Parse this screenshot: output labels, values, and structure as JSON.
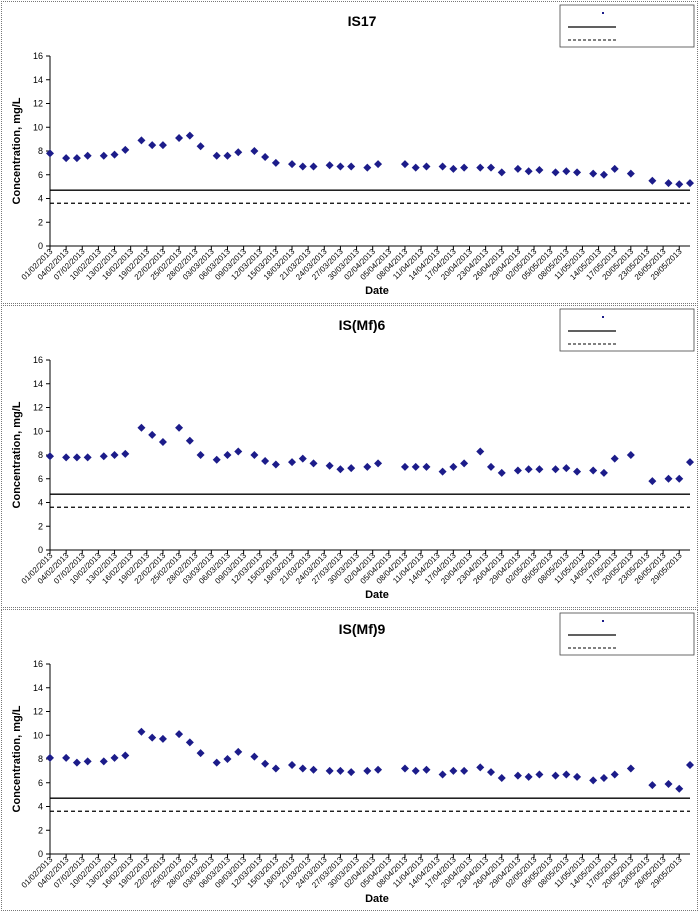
{
  "chart_data": [
    {
      "type": "scatter",
      "title": "IS17",
      "xlabel": "Date",
      "ylabel": "Concentration, mg/L",
      "ylim": [
        0,
        16
      ],
      "yticks": [
        0,
        2,
        4,
        6,
        8,
        10,
        12,
        14,
        16
      ],
      "xlim": [
        "01/02/2013",
        "31/05/2013"
      ],
      "xticks": [
        "01/02/2013",
        "04/02/2013",
        "07/02/2013",
        "10/02/2013",
        "13/02/2013",
        "16/02/2013",
        "19/02/2013",
        "22/02/2013",
        "25/02/2013",
        "28/02/2013",
        "03/03/2013",
        "06/03/2013",
        "09/03/2013",
        "12/03/2013",
        "15/03/2013",
        "18/03/2013",
        "21/03/2013",
        "24/03/2013",
        "27/03/2013",
        "30/03/2013",
        "02/04/2013",
        "05/04/2013",
        "08/04/2013",
        "11/04/2013",
        "14/04/2013",
        "17/04/2013",
        "20/04/2013",
        "23/04/2013",
        "26/04/2013",
        "29/04/2013",
        "02/05/2013",
        "05/05/2013",
        "08/05/2013",
        "11/05/2013",
        "14/05/2013",
        "17/05/2013",
        "20/05/2013",
        "23/05/2013",
        "26/05/2013",
        "29/05/2013"
      ],
      "grid": false,
      "legend_position": "top-right",
      "legend": [
        "",
        "",
        ""
      ],
      "points": [
        [
          "01/02/2013",
          7.8
        ],
        [
          "04/02/2013",
          7.4
        ],
        [
          "06/02/2013",
          7.4
        ],
        [
          "08/02/2013",
          7.6
        ],
        [
          "11/02/2013",
          7.6
        ],
        [
          "13/02/2013",
          7.7
        ],
        [
          "15/02/2013",
          8.1
        ],
        [
          "18/02/2013",
          8.9
        ],
        [
          "20/02/2013",
          8.5
        ],
        [
          "22/02/2013",
          8.5
        ],
        [
          "25/02/2013",
          9.1
        ],
        [
          "27/02/2013",
          9.3
        ],
        [
          "01/03/2013",
          8.4
        ],
        [
          "04/03/2013",
          7.6
        ],
        [
          "06/03/2013",
          7.6
        ],
        [
          "08/03/2013",
          7.9
        ],
        [
          "11/03/2013",
          8.0
        ],
        [
          "13/03/2013",
          7.5
        ],
        [
          "15/03/2013",
          7.0
        ],
        [
          "18/03/2013",
          6.9
        ],
        [
          "20/03/2013",
          6.7
        ],
        [
          "22/03/2013",
          6.7
        ],
        [
          "25/03/2013",
          6.8
        ],
        [
          "27/03/2013",
          6.7
        ],
        [
          "29/03/2013",
          6.7
        ],
        [
          "01/04/2013",
          6.6
        ],
        [
          "03/04/2013",
          6.9
        ],
        [
          "08/04/2013",
          6.9
        ],
        [
          "10/04/2013",
          6.6
        ],
        [
          "12/04/2013",
          6.7
        ],
        [
          "15/04/2013",
          6.7
        ],
        [
          "17/04/2013",
          6.5
        ],
        [
          "19/04/2013",
          6.6
        ],
        [
          "22/04/2013",
          6.6
        ],
        [
          "24/04/2013",
          6.6
        ],
        [
          "26/04/2013",
          6.2
        ],
        [
          "29/04/2013",
          6.5
        ],
        [
          "01/05/2013",
          6.3
        ],
        [
          "03/05/2013",
          6.4
        ],
        [
          "06/05/2013",
          6.2
        ],
        [
          "08/05/2013",
          6.3
        ],
        [
          "10/05/2013",
          6.2
        ],
        [
          "13/05/2013",
          6.1
        ],
        [
          "15/05/2013",
          6.0
        ],
        [
          "17/05/2013",
          6.5
        ],
        [
          "20/05/2013",
          6.1
        ],
        [
          "24/05/2013",
          5.5
        ],
        [
          "27/05/2013",
          5.3
        ],
        [
          "29/05/2013",
          5.2
        ],
        [
          "31/05/2013",
          5.3
        ]
      ],
      "hlines": [
        {
          "value": 4.7,
          "style": "solid"
        },
        {
          "value": 3.6,
          "style": "dashed"
        }
      ]
    },
    {
      "type": "scatter",
      "title": "IS(Mf)6",
      "xlabel": "Date",
      "ylabel": "Concentration, mg/L",
      "ylim": [
        0,
        16
      ],
      "yticks": [
        0,
        2,
        4,
        6,
        8,
        10,
        12,
        14,
        16
      ],
      "xlim": [
        "01/02/2013",
        "31/05/2013"
      ],
      "xticks": [
        "01/02/2013",
        "04/02/2013",
        "07/02/2013",
        "10/02/2013",
        "13/02/2013",
        "16/02/2013",
        "19/02/2013",
        "22/02/2013",
        "25/02/2013",
        "28/02/2013",
        "03/03/2013",
        "06/03/2013",
        "09/03/2013",
        "12/03/2013",
        "15/03/2013",
        "18/03/2013",
        "21/03/2013",
        "24/03/2013",
        "27/03/2013",
        "30/03/2013",
        "02/04/2013",
        "05/04/2013",
        "08/04/2013",
        "11/04/2013",
        "14/04/2013",
        "17/04/2013",
        "20/04/2013",
        "23/04/2013",
        "26/04/2013",
        "29/04/2013",
        "02/05/2013",
        "05/05/2013",
        "08/05/2013",
        "11/05/2013",
        "14/05/2013",
        "17/05/2013",
        "20/05/2013",
        "23/05/2013",
        "26/05/2013",
        "29/05/2013"
      ],
      "grid": false,
      "legend_position": "top-right",
      "legend": [
        "",
        "",
        ""
      ],
      "points": [
        [
          "01/02/2013",
          7.9
        ],
        [
          "04/02/2013",
          7.8
        ],
        [
          "06/02/2013",
          7.8
        ],
        [
          "08/02/2013",
          7.8
        ],
        [
          "11/02/2013",
          7.9
        ],
        [
          "13/02/2013",
          8.0
        ],
        [
          "15/02/2013",
          8.1
        ],
        [
          "18/02/2013",
          10.3
        ],
        [
          "20/02/2013",
          9.7
        ],
        [
          "22/02/2013",
          9.1
        ],
        [
          "25/02/2013",
          10.3
        ],
        [
          "27/02/2013",
          9.2
        ],
        [
          "01/03/2013",
          8.0
        ],
        [
          "04/03/2013",
          7.6
        ],
        [
          "06/03/2013",
          8.0
        ],
        [
          "08/03/2013",
          8.3
        ],
        [
          "11/03/2013",
          8.0
        ],
        [
          "13/03/2013",
          7.5
        ],
        [
          "15/03/2013",
          7.2
        ],
        [
          "18/03/2013",
          7.4
        ],
        [
          "20/03/2013",
          7.7
        ],
        [
          "22/03/2013",
          7.3
        ],
        [
          "25/03/2013",
          7.1
        ],
        [
          "27/03/2013",
          6.8
        ],
        [
          "29/03/2013",
          6.9
        ],
        [
          "01/04/2013",
          7.0
        ],
        [
          "03/04/2013",
          7.3
        ],
        [
          "08/04/2013",
          7.0
        ],
        [
          "10/04/2013",
          7.0
        ],
        [
          "12/04/2013",
          7.0
        ],
        [
          "15/04/2013",
          6.6
        ],
        [
          "17/04/2013",
          7.0
        ],
        [
          "19/04/2013",
          7.3
        ],
        [
          "22/04/2013",
          8.3
        ],
        [
          "24/04/2013",
          7.0
        ],
        [
          "26/04/2013",
          6.5
        ],
        [
          "29/04/2013",
          6.7
        ],
        [
          "01/05/2013",
          6.8
        ],
        [
          "03/05/2013",
          6.8
        ],
        [
          "06/05/2013",
          6.8
        ],
        [
          "08/05/2013",
          6.9
        ],
        [
          "10/05/2013",
          6.6
        ],
        [
          "13/05/2013",
          6.7
        ],
        [
          "15/05/2013",
          6.5
        ],
        [
          "17/05/2013",
          7.7
        ],
        [
          "20/05/2013",
          8.0
        ],
        [
          "24/05/2013",
          5.8
        ],
        [
          "27/05/2013",
          6.0
        ],
        [
          "29/05/2013",
          6.0
        ],
        [
          "31/05/2013",
          7.4
        ]
      ],
      "hlines": [
        {
          "value": 4.7,
          "style": "solid"
        },
        {
          "value": 3.6,
          "style": "dashed"
        }
      ]
    },
    {
      "type": "scatter",
      "title": "IS(Mf)9",
      "xlabel": "Date",
      "ylabel": "Concentration, mg/L",
      "ylim": [
        0,
        16
      ],
      "yticks": [
        0,
        2,
        4,
        6,
        8,
        10,
        12,
        14,
        16
      ],
      "xlim": [
        "01/02/2013",
        "31/05/2013"
      ],
      "xticks": [
        "01/02/2013",
        "04/02/2013",
        "07/02/2013",
        "10/02/2013",
        "13/02/2013",
        "16/02/2013",
        "19/02/2013",
        "22/02/2013",
        "25/02/2013",
        "28/02/2013",
        "03/03/2013",
        "06/03/2013",
        "09/03/2013",
        "12/03/2013",
        "15/03/2013",
        "18/03/2013",
        "21/03/2013",
        "24/03/2013",
        "27/03/2013",
        "30/03/2013",
        "02/04/2013",
        "05/04/2013",
        "08/04/2013",
        "11/04/2013",
        "14/04/2013",
        "17/04/2013",
        "20/04/2013",
        "23/04/2013",
        "26/04/2013",
        "29/04/2013",
        "02/05/2013",
        "05/05/2013",
        "08/05/2013",
        "11/05/2013",
        "14/05/2013",
        "17/05/2013",
        "20/05/2013",
        "23/05/2013",
        "26/05/2013",
        "29/05/2013"
      ],
      "grid": false,
      "legend_position": "top-right",
      "legend": [
        "",
        "",
        ""
      ],
      "points": [
        [
          "01/02/2013",
          8.1
        ],
        [
          "04/02/2013",
          8.1
        ],
        [
          "06/02/2013",
          7.7
        ],
        [
          "08/02/2013",
          7.8
        ],
        [
          "11/02/2013",
          7.8
        ],
        [
          "13/02/2013",
          8.1
        ],
        [
          "15/02/2013",
          8.3
        ],
        [
          "18/02/2013",
          10.3
        ],
        [
          "20/02/2013",
          9.8
        ],
        [
          "22/02/2013",
          9.7
        ],
        [
          "25/02/2013",
          10.1
        ],
        [
          "27/02/2013",
          9.4
        ],
        [
          "01/03/2013",
          8.5
        ],
        [
          "04/03/2013",
          7.7
        ],
        [
          "06/03/2013",
          8.0
        ],
        [
          "08/03/2013",
          8.6
        ],
        [
          "11/03/2013",
          8.2
        ],
        [
          "13/03/2013",
          7.6
        ],
        [
          "15/03/2013",
          7.2
        ],
        [
          "18/03/2013",
          7.5
        ],
        [
          "20/03/2013",
          7.2
        ],
        [
          "22/03/2013",
          7.1
        ],
        [
          "25/03/2013",
          7.0
        ],
        [
          "27/03/2013",
          7.0
        ],
        [
          "29/03/2013",
          6.9
        ],
        [
          "01/04/2013",
          7.0
        ],
        [
          "03/04/2013",
          7.1
        ],
        [
          "08/04/2013",
          7.2
        ],
        [
          "10/04/2013",
          7.0
        ],
        [
          "12/04/2013",
          7.1
        ],
        [
          "15/04/2013",
          6.7
        ],
        [
          "17/04/2013",
          7.0
        ],
        [
          "19/04/2013",
          7.0
        ],
        [
          "22/04/2013",
          7.3
        ],
        [
          "24/04/2013",
          6.9
        ],
        [
          "26/04/2013",
          6.4
        ],
        [
          "29/04/2013",
          6.6
        ],
        [
          "01/05/2013",
          6.5
        ],
        [
          "03/05/2013",
          6.7
        ],
        [
          "06/05/2013",
          6.6
        ],
        [
          "08/05/2013",
          6.7
        ],
        [
          "10/05/2013",
          6.5
        ],
        [
          "13/05/2013",
          6.2
        ],
        [
          "15/05/2013",
          6.4
        ],
        [
          "17/05/2013",
          6.7
        ],
        [
          "20/05/2013",
          7.2
        ],
        [
          "24/05/2013",
          5.8
        ],
        [
          "27/05/2013",
          5.9
        ],
        [
          "29/05/2013",
          5.5
        ],
        [
          "31/05/2013",
          7.5
        ]
      ],
      "hlines": [
        {
          "value": 4.7,
          "style": "solid"
        },
        {
          "value": 3.6,
          "style": "dashed"
        }
      ]
    }
  ],
  "colors": {
    "marker": "#1c1c8a",
    "line": "#000000",
    "panel_border": "#777777"
  }
}
